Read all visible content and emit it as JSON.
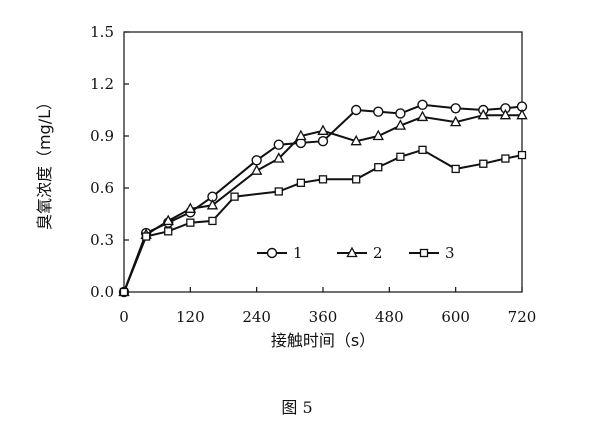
{
  "chart_data": {
    "type": "line",
    "xlabel": "接触时间（s）",
    "ylabel": "臭氧浓度（mg/L）",
    "xlim": [
      0,
      720
    ],
    "ylim": [
      0,
      1.5
    ],
    "x_ticks": [
      "0",
      "120",
      "240",
      "360",
      "480",
      "600",
      "720"
    ],
    "y_ticks": [
      "0.0",
      "0.3",
      "0.6",
      "0.9",
      "1.2",
      "1.5"
    ],
    "grid": false,
    "legend_position": "bottom-right-inside",
    "series": [
      {
        "name": "1",
        "marker": "circle",
        "x": [
          0,
          40,
          80,
          120,
          160,
          240,
          280,
          320,
          360,
          420,
          460,
          500,
          540,
          600,
          650,
          690,
          720
        ],
        "y": [
          0.0,
          0.34,
          0.4,
          0.46,
          0.55,
          0.76,
          0.85,
          0.86,
          0.87,
          1.05,
          1.04,
          1.03,
          1.08,
          1.06,
          1.05,
          1.06,
          1.07
        ]
      },
      {
        "name": "2",
        "marker": "triangle",
        "x": [
          0,
          40,
          80,
          120,
          160,
          240,
          280,
          320,
          360,
          420,
          460,
          500,
          540,
          600,
          650,
          690,
          720
        ],
        "y": [
          0.0,
          0.33,
          0.41,
          0.48,
          0.5,
          0.7,
          0.77,
          0.9,
          0.93,
          0.87,
          0.9,
          0.96,
          1.01,
          0.98,
          1.02,
          1.02,
          1.02
        ]
      },
      {
        "name": "3",
        "marker": "square",
        "x": [
          0,
          40,
          80,
          120,
          160,
          200,
          280,
          320,
          360,
          420,
          460,
          500,
          540,
          600,
          650,
          690,
          720
        ],
        "y": [
          0.0,
          0.32,
          0.35,
          0.4,
          0.41,
          0.55,
          0.58,
          0.63,
          0.65,
          0.65,
          0.72,
          0.78,
          0.82,
          0.71,
          0.74,
          0.77,
          0.79
        ]
      }
    ]
  },
  "caption": "图 5"
}
